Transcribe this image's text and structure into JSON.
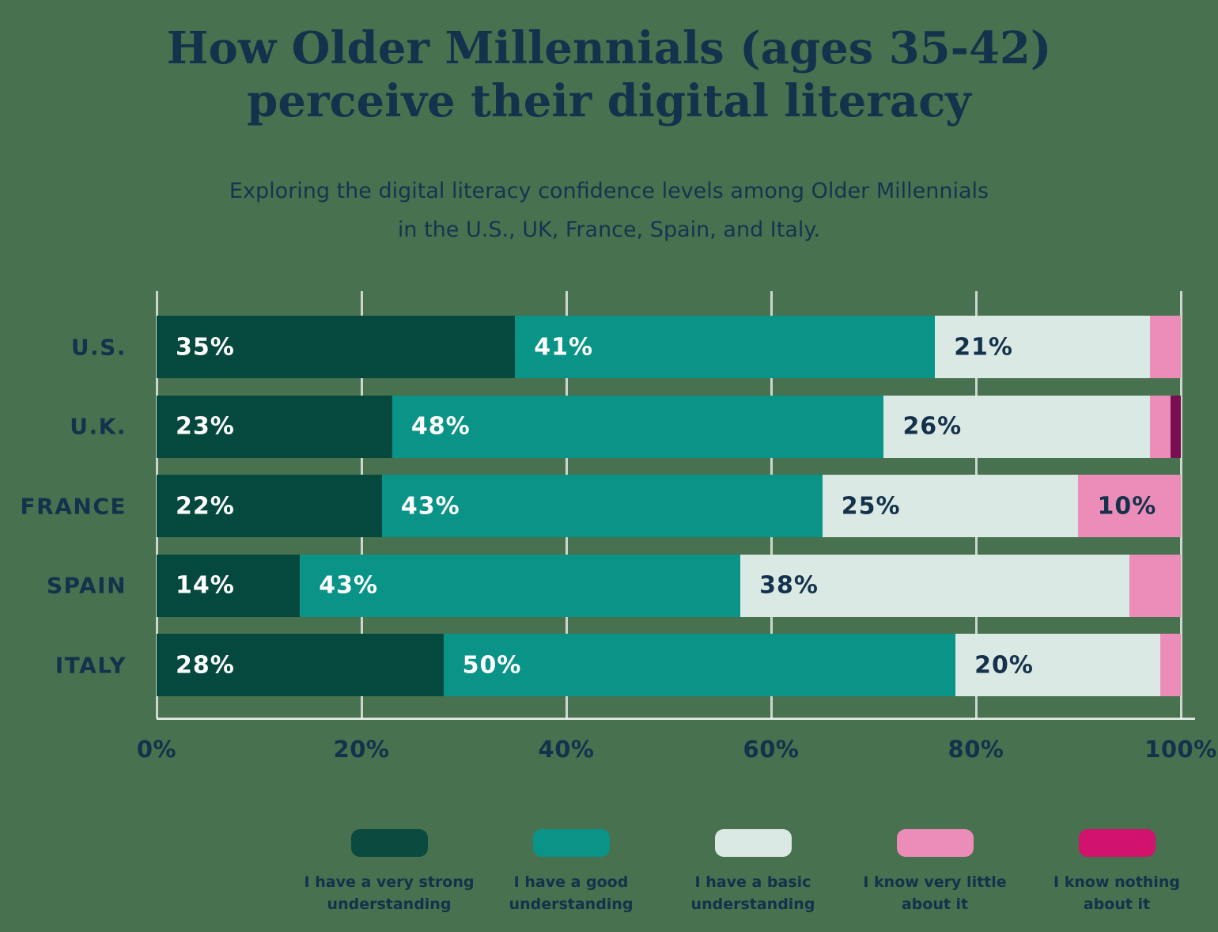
{
  "page": {
    "background_color": "#47714F",
    "text_color": "#14324B"
  },
  "chart_data": {
    "type": "bar",
    "orientation": "horizontal-stacked",
    "title": "How Older Millennials (ages 35-42)\nperceive their digital literacy",
    "subtitle": "Exploring the digital literacy confidence levels among Older Millennials\nin the U.S., UK, France, Spain, and Italy.",
    "categories": [
      "U.S.",
      "U.K.",
      "FRANCE",
      "SPAIN",
      "ITALY"
    ],
    "series": [
      {
        "name": "I have a very strong understanding",
        "legend_label": "I have a very strong\nunderstanding",
        "color": "#05493E",
        "legend_color": "#0B4A3F",
        "label_color": "#FFFFFF",
        "values": [
          35,
          23,
          22,
          14,
          28
        ]
      },
      {
        "name": "I have a good understanding",
        "legend_label": "I have a good\nunderstanding",
        "color": "#0A9488",
        "legend_color": "#0A9488",
        "label_color": "#FFFFFF",
        "values": [
          41,
          48,
          43,
          43,
          50
        ]
      },
      {
        "name": "I have a basic understanding",
        "legend_label": "I have a basic\nunderstanding",
        "color": "#DBE9E4",
        "legend_color": "#DBE9E4",
        "label_color": "#14324B",
        "values": [
          21,
          26,
          25,
          38,
          20
        ]
      },
      {
        "name": "I know very little about it",
        "legend_label": "I know very little\nabout it",
        "color": "#EC8DB9",
        "legend_color": "#EC8DB9",
        "label_color": "#14324B",
        "values": [
          3,
          2,
          10,
          5,
          2
        ]
      },
      {
        "name": "I know nothing about it",
        "legend_label": "I know nothing\nabout it",
        "color": "#7A0E52",
        "legend_color": "#D2136D",
        "label_color": "#FFFFFF",
        "values": [
          0,
          1,
          0,
          0,
          0
        ]
      }
    ],
    "x_ticks": [
      "0%",
      "20%",
      "40%",
      "60%",
      "80%",
      "100%"
    ],
    "xlim": [
      0,
      100
    ],
    "grid": true,
    "gridline_color": "rgba(255,255,255,0.72)",
    "label_min_value": 10,
    "value_suffix": "%",
    "legend_position": "bottom"
  }
}
